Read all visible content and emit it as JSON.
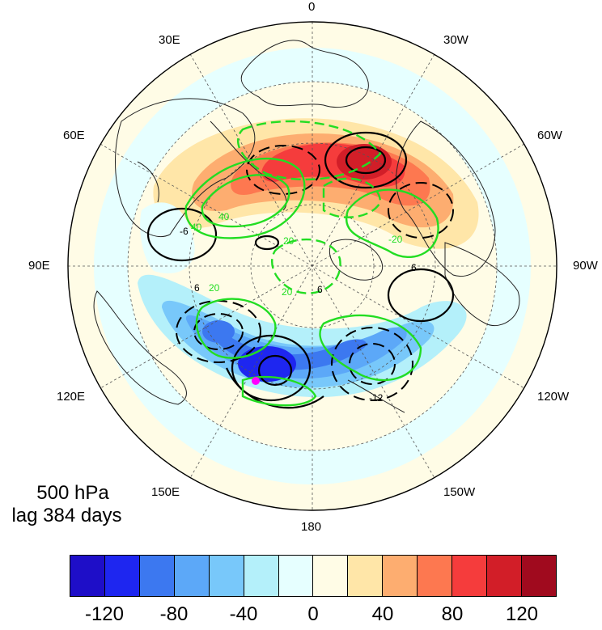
{
  "map": {
    "projection": "north-polar-stereographic",
    "lon_labels": [
      "0",
      "30W",
      "60W",
      "90W",
      "120W",
      "150W",
      "180",
      "150E",
      "120E",
      "90E",
      "60E",
      "30E"
    ],
    "caption": {
      "level": "500 hPa",
      "lag": "lag 384 days"
    },
    "marker_color": "#ff00ff",
    "contour_labels": [
      "40",
      "40",
      "20",
      "20",
      "20",
      "-20",
      "6",
      "6",
      "6",
      "-6",
      "-12"
    ],
    "contour_colors": {
      "streamfunction": "#22dd22",
      "height_positive": "#000000",
      "height_negative": "#000000"
    }
  },
  "colorbar": {
    "tick_labels": [
      "-120",
      "-80",
      "-40",
      "0",
      "40",
      "80",
      "120"
    ],
    "colors": [
      "#1e0ec8",
      "#1e26f0",
      "#3c78f0",
      "#5ca8f8",
      "#78c8fa",
      "#b4f0fa",
      "#e6ffff",
      "#fffce6",
      "#ffe6a8",
      "#fdad70",
      "#fd7850",
      "#f53c3c",
      "#d21e28",
      "#a00a1e"
    ]
  }
}
